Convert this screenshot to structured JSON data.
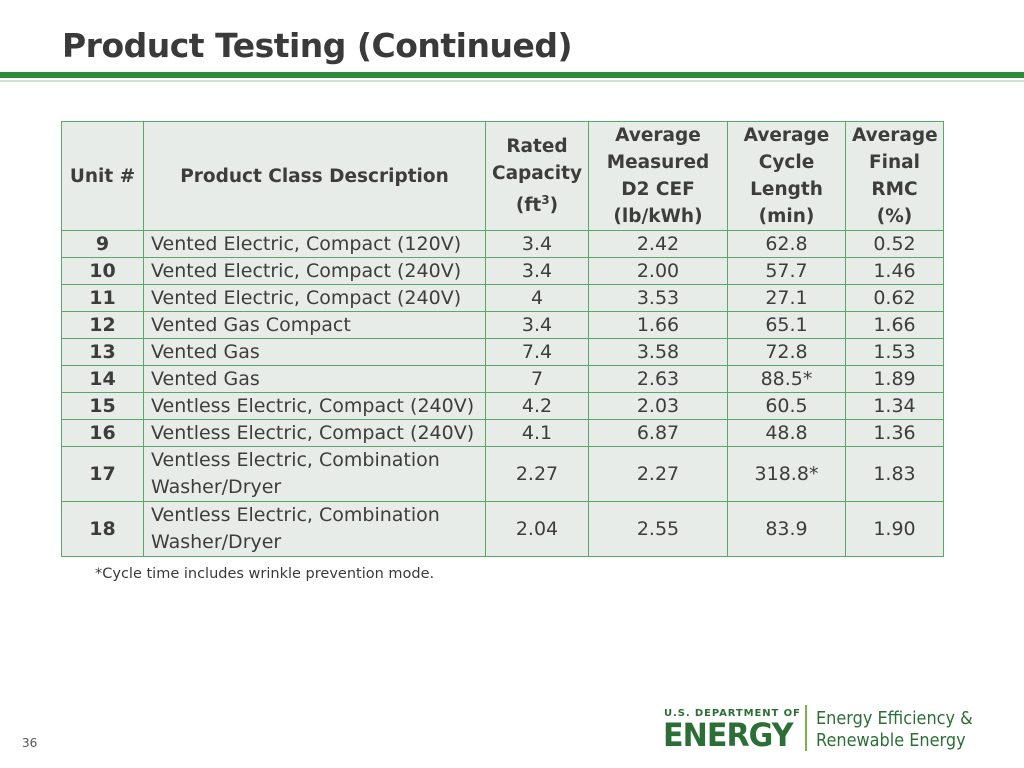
{
  "slide": {
    "title": "Product Testing (Continued)",
    "page_number": "36",
    "footnote": "*Cycle time includes wrinkle prevention mode."
  },
  "table": {
    "headers": {
      "unit": "Unit #",
      "description": "Product Class Description",
      "capacity_main": "Rated Capacity (ft",
      "capacity_sup": "3",
      "capacity_end": ")",
      "cef": "Average Measured D2 CEF (lb/kWh)",
      "cycle_length": "Average Cycle Length (min)",
      "rmc": "Average Final RMC (%)"
    },
    "rows": [
      {
        "unit": "9",
        "description": "Vented Electric, Compact (120V)",
        "capacity": "3.4",
        "cef": "2.42",
        "cycle_length": "62.8",
        "rmc": "0.52"
      },
      {
        "unit": "10",
        "description": "Vented Electric, Compact (240V)",
        "capacity": "3.4",
        "cef": "2.00",
        "cycle_length": "57.7",
        "rmc": "1.46"
      },
      {
        "unit": "11",
        "description": "Vented Electric, Compact (240V)",
        "capacity": "4",
        "cef": "3.53",
        "cycle_length": "27.1",
        "rmc": "0.62"
      },
      {
        "unit": "12",
        "description": "Vented Gas Compact",
        "capacity": "3.4",
        "cef": "1.66",
        "cycle_length": "65.1",
        "rmc": "1.66"
      },
      {
        "unit": "13",
        "description": "Vented Gas",
        "capacity": "7.4",
        "cef": "3.58",
        "cycle_length": "72.8",
        "rmc": "1.53"
      },
      {
        "unit": "14",
        "description": "Vented Gas",
        "capacity": "7",
        "cef": "2.63",
        "cycle_length": "88.5*",
        "rmc": "1.89"
      },
      {
        "unit": "15",
        "description": "Ventless Electric, Compact (240V)",
        "capacity": "4.2",
        "cef": "2.03",
        "cycle_length": "60.5",
        "rmc": "1.34"
      },
      {
        "unit": "16",
        "description": "Ventless Electric, Compact (240V)",
        "capacity": "4.1",
        "cef": "6.87",
        "cycle_length": "48.8",
        "rmc": "1.36"
      },
      {
        "unit": "17",
        "description": "Ventless Electric, Combination Washer/Dryer",
        "capacity": "2.27",
        "cef": "2.27",
        "cycle_length": "318.8*",
        "rmc": "1.83"
      },
      {
        "unit": "18",
        "description": "Ventless Electric, Combination Washer/Dryer",
        "capacity": "2.04",
        "cef": "2.55",
        "cycle_length": "83.9",
        "rmc": "1.90"
      }
    ]
  },
  "logo": {
    "department_line": "U.S. DEPARTMENT OF",
    "department_word": "ENERGY",
    "office_line1": "Energy Efficiency &",
    "office_line2": "Renewable Energy"
  },
  "colors": {
    "accent_green": "#2e8b3d",
    "table_border": "#5aa865",
    "table_fill": "#e8ece9"
  }
}
